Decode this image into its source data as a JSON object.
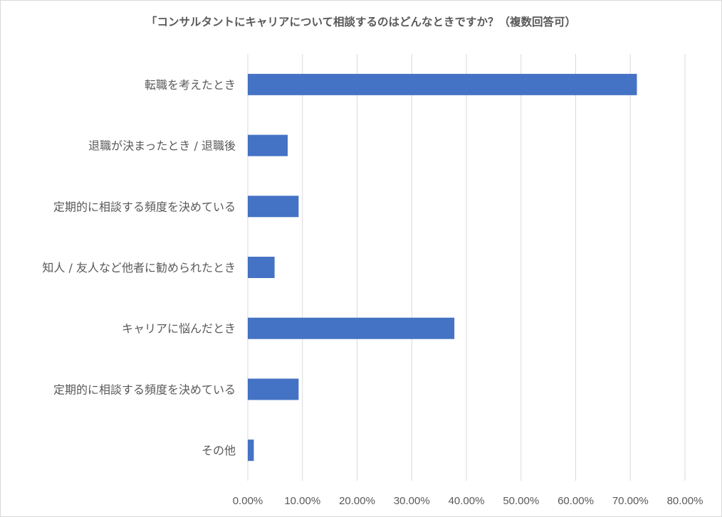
{
  "chart_data": {
    "type": "bar",
    "orientation": "horizontal",
    "title": "「コンサルタントにキャリアについて相談するのはどんなときですか？（複数回答可）",
    "categories": [
      "転職を考えたとき",
      "退職が決まったとき / 退職後",
      "定期的に相談する頻度を決めている",
      "知人 / 友人など他者に勧められたとき",
      "キャリアに悩んだとき",
      "定期的に相談する頻度を決めている",
      "その他"
    ],
    "values": [
      71.2,
      7.3,
      9.3,
      4.9,
      37.8,
      9.3,
      1.1
    ],
    "xlim": [
      0,
      80
    ],
    "xticks": [
      "0.00%",
      "10.00%",
      "20.00%",
      "30.00%",
      "40.00%",
      "50.00%",
      "60.00%",
      "70.00%",
      "80.00%"
    ],
    "xlabel": "",
    "ylabel": "",
    "grid": "vertical",
    "legend": "none",
    "bar_color": "#4472c4",
    "grid_color": "#d9d9d9"
  }
}
